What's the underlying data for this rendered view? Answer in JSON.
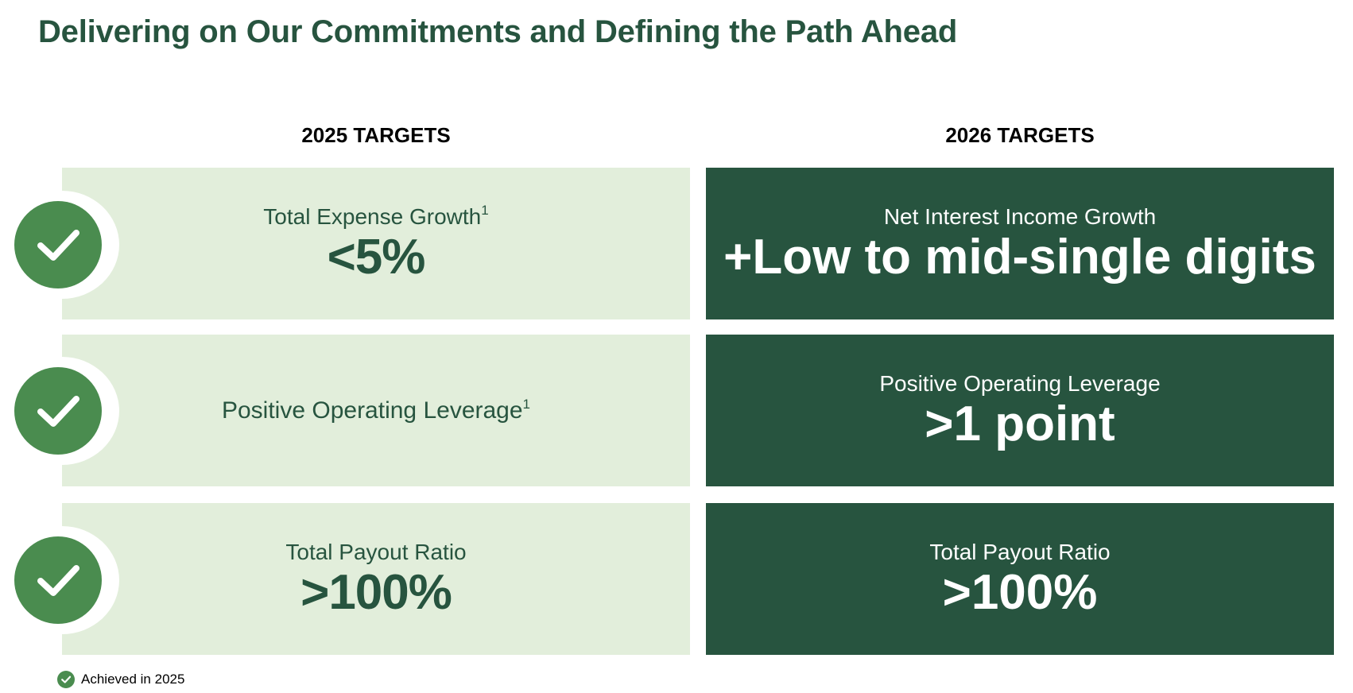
{
  "title": "Delivering on Our Commitments and Defining the Path Ahead",
  "columns": {
    "left_header": "2025 TARGETS",
    "right_header": "2026 TARGETS"
  },
  "targets_2025": [
    {
      "label": "Total Expense Growth",
      "footnote_ref": "1",
      "value": "<5%",
      "achieved": true
    },
    {
      "label": "Positive Operating Leverage",
      "footnote_ref": "1",
      "value": "",
      "achieved": true
    },
    {
      "label": "Total Payout Ratio",
      "footnote_ref": "",
      "value": ">100%",
      "achieved": true
    }
  ],
  "targets_2026": [
    {
      "label": "Net Interest Income Growth",
      "value": "+Low to mid-single digits"
    },
    {
      "label": "Positive Operating Leverage",
      "value": ">1 point"
    },
    {
      "label": "Total Payout Ratio",
      "value": ">100%"
    }
  ],
  "legend": {
    "icon": "check-circle-icon",
    "text": "Achieved in 2025"
  },
  "colors": {
    "dark_green": "#27543f",
    "light_green": "#e2eedb",
    "check_green": "#4a8c4f"
  }
}
